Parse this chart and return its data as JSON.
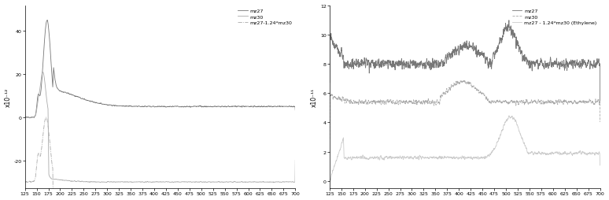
{
  "xlim": [
    125,
    700
  ],
  "xticks": [
    125,
    150,
    175,
    200,
    225,
    250,
    275,
    300,
    325,
    350,
    375,
    400,
    425,
    450,
    475,
    500,
    525,
    550,
    575,
    600,
    625,
    650,
    675,
    700
  ],
  "left_ylabel": "x10⁻¹²",
  "left_ylim": [
    -33,
    52
  ],
  "left_yticks": [
    -20,
    0,
    20,
    40
  ],
  "left_legend": [
    "mz27",
    "mz30",
    "mz27-1.24*mz30"
  ],
  "right_ylabel": "x10⁻¹¹",
  "right_ylim": [
    -0.5,
    12
  ],
  "right_yticks": [
    0,
    2,
    4,
    6,
    8,
    10,
    12
  ],
  "right_legend": [
    "mz27",
    "mz30",
    "mz27 - 1.24*mz30 (Ethylene)"
  ],
  "line_dark": "#777777",
  "line_mid": "#aaaaaa",
  "line_light": "#cccccc"
}
